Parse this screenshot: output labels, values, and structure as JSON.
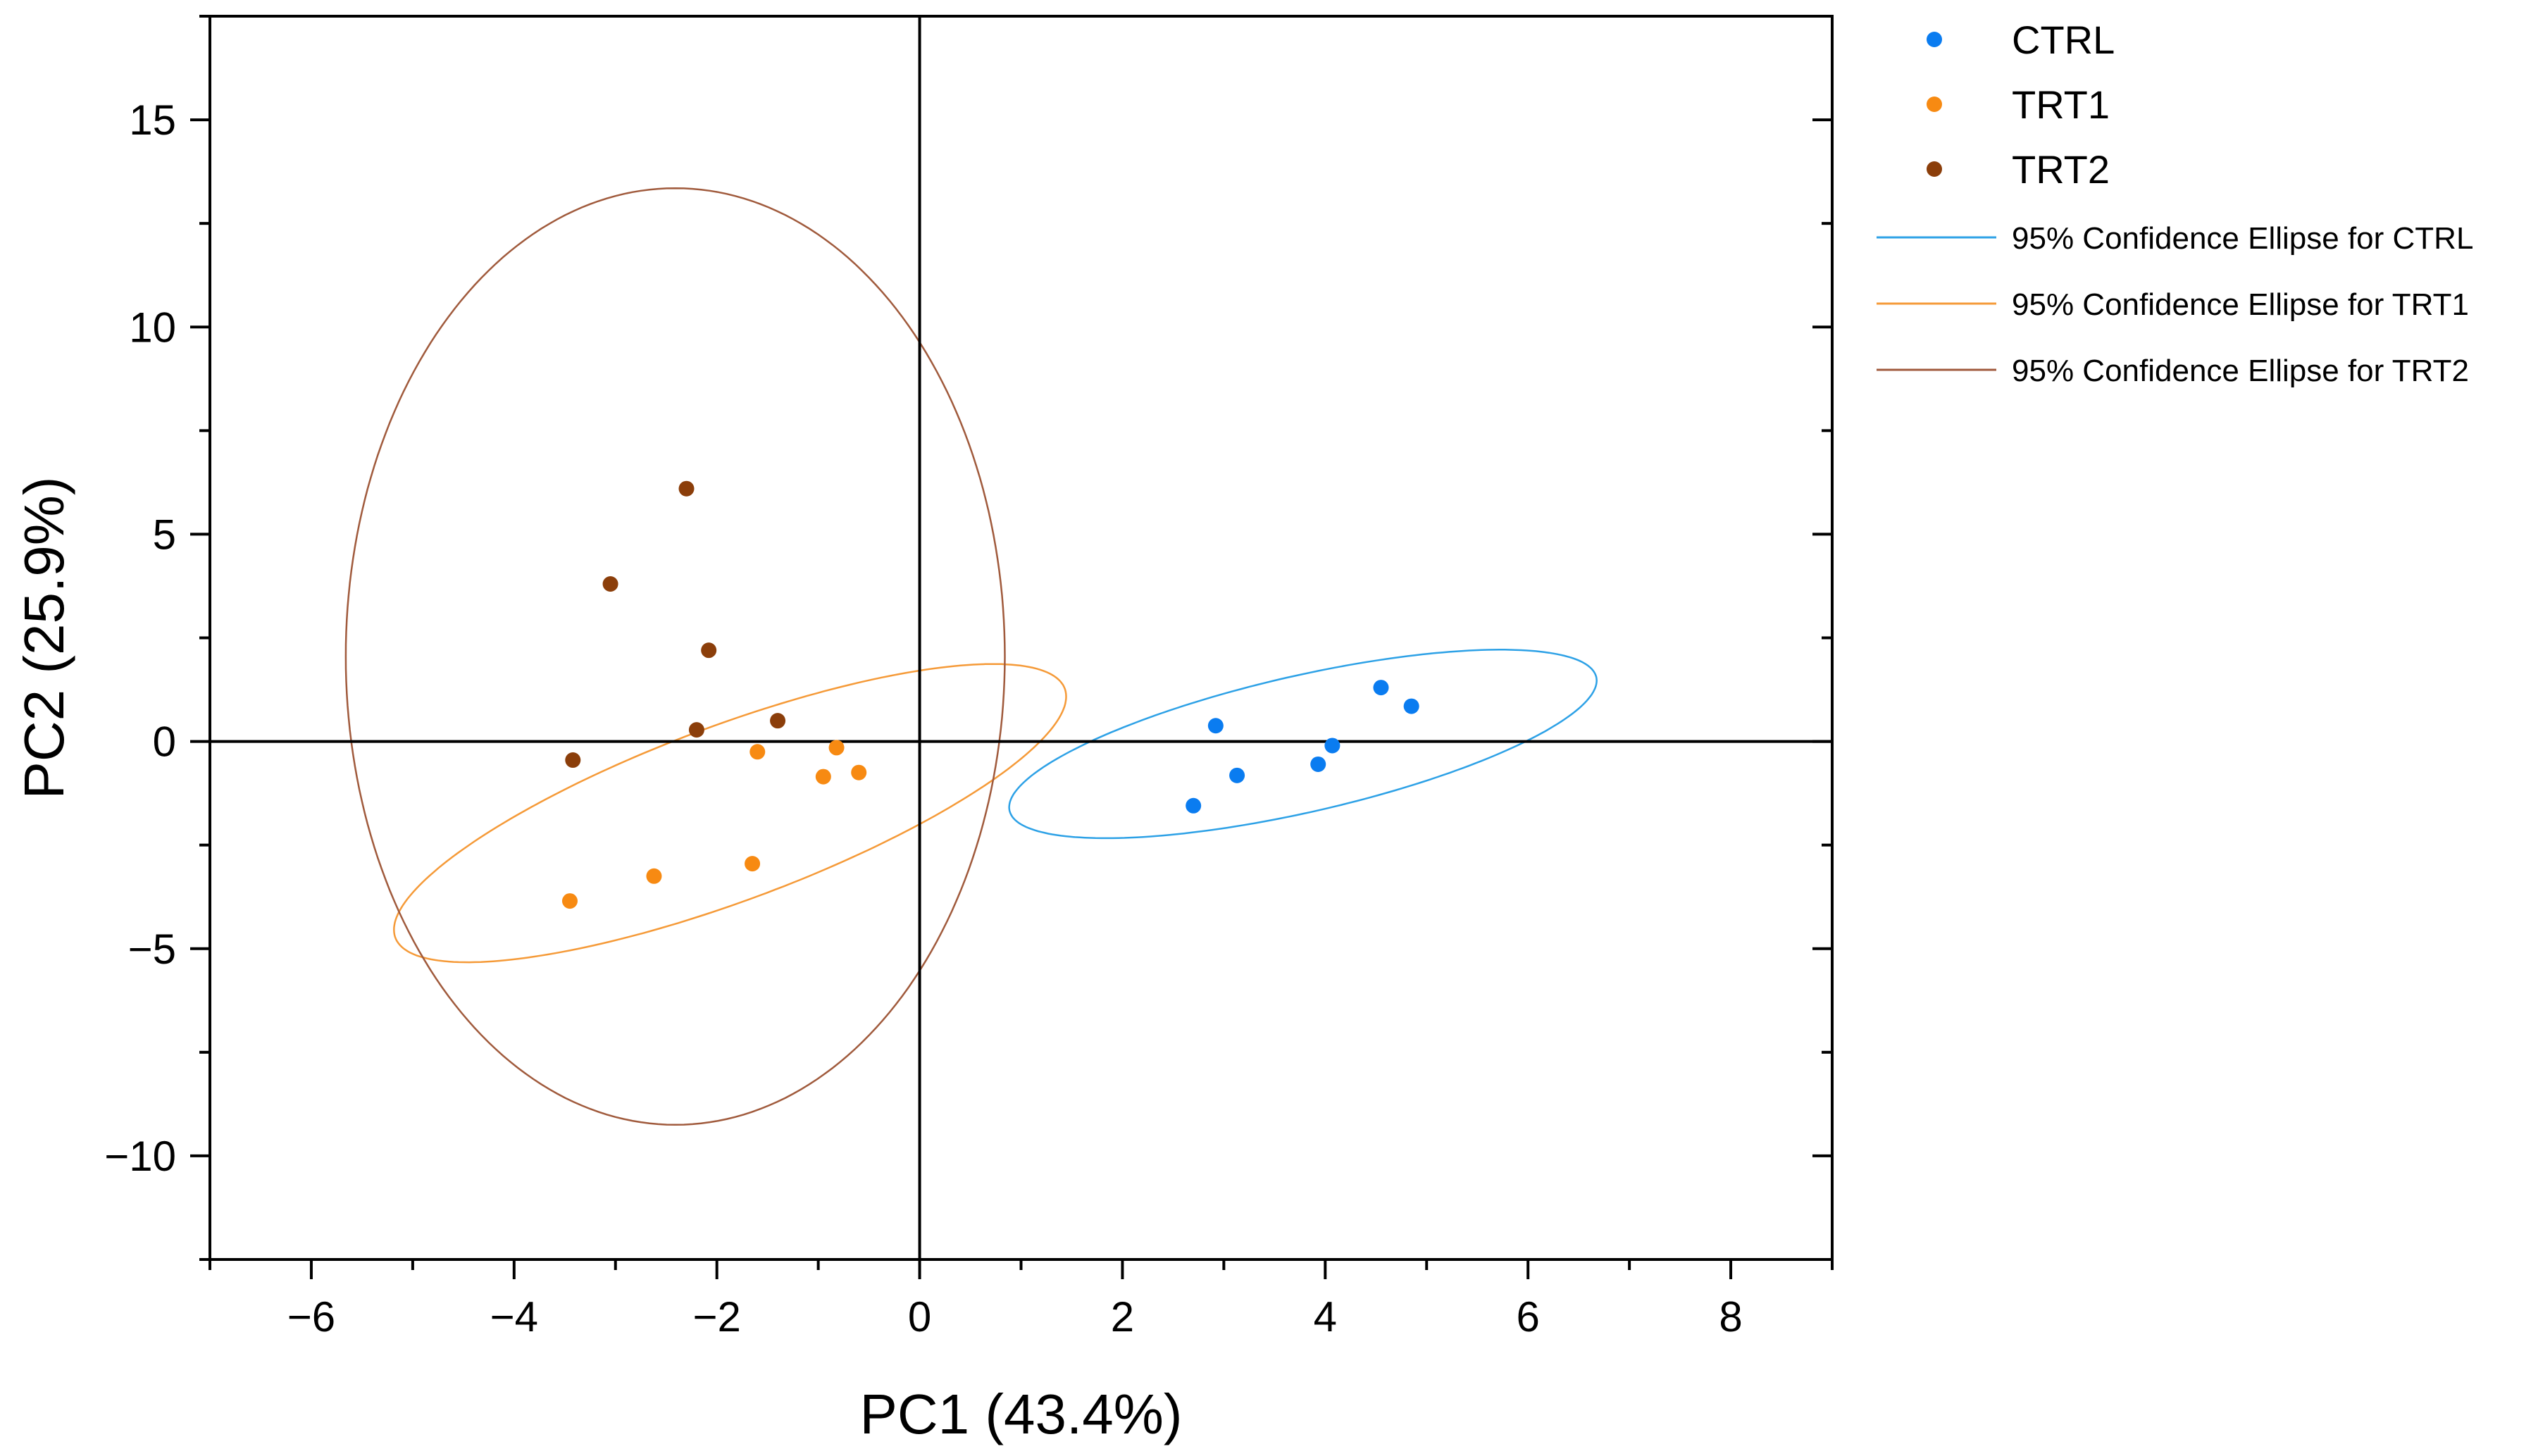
{
  "chart_data": {
    "type": "scatter",
    "title": "",
    "xlabel": "PC1 (43.4%)",
    "ylabel": "PC2 (25.9%)",
    "xlim": [
      -7,
      9
    ],
    "ylim": [
      -12.5,
      17.5
    ],
    "x_ticks": [
      -6,
      -4,
      -2,
      0,
      2,
      4,
      6,
      8
    ],
    "x_tick_labels": [
      "−6",
      "−4",
      "−2",
      "0",
      "2",
      "4",
      "6",
      "8"
    ],
    "y_ticks": [
      -10,
      -5,
      0,
      5,
      10,
      15
    ],
    "y_tick_labels": [
      "−10",
      "−5",
      "0",
      "5",
      "10",
      "15"
    ],
    "reference_lines": {
      "x": 0,
      "y": 0
    },
    "grid": false,
    "legend_position": "outside-right",
    "series": [
      {
        "name": "CTRL",
        "color": "#0a7cf0",
        "points": [
          [
            2.7,
            -1.55
          ],
          [
            2.92,
            0.38
          ],
          [
            3.13,
            -0.82
          ],
          [
            3.93,
            -0.55
          ],
          [
            4.07,
            -0.1
          ],
          [
            4.55,
            1.3
          ],
          [
            4.85,
            0.85
          ]
        ]
      },
      {
        "name": "TRT1",
        "color": "#f78a12",
        "points": [
          [
            -3.45,
            -3.85
          ],
          [
            -2.62,
            -3.25
          ],
          [
            -1.65,
            -2.95
          ],
          [
            -1.6,
            -0.25
          ],
          [
            -0.95,
            -0.85
          ],
          [
            -0.82,
            -0.15
          ],
          [
            -0.6,
            -0.75
          ]
        ]
      },
      {
        "name": "TRT2",
        "color": "#8b3e0a",
        "points": [
          [
            -3.42,
            -0.45
          ],
          [
            -3.05,
            3.8
          ],
          [
            -2.3,
            6.1
          ],
          [
            -2.2,
            0.28
          ],
          [
            -2.08,
            2.2
          ],
          [
            -1.4,
            0.5
          ]
        ]
      }
    ],
    "ellipses": [
      {
        "name": "95% Confidence Ellipse for CTRL",
        "color": "#2da1e6",
        "center": [
          3.78,
          -0.06
        ],
        "semi_major": 3.39,
        "semi_minor": 1.44,
        "angle_deg": 35
      },
      {
        "name": "95% Confidence Ellipse for TRT1",
        "color": "#f59a38",
        "center": [
          -1.87,
          -1.73
        ],
        "semi_major": 4.62,
        "semi_minor": 1.61,
        "angle_deg": 48
      },
      {
        "name": "95% Confidence Ellipse for TRT2",
        "color": "#a05a3c",
        "center": [
          -2.41,
          2.05
        ],
        "semi_major": 11.3,
        "semi_minor": 3.25,
        "angle_deg": 90
      }
    ]
  }
}
